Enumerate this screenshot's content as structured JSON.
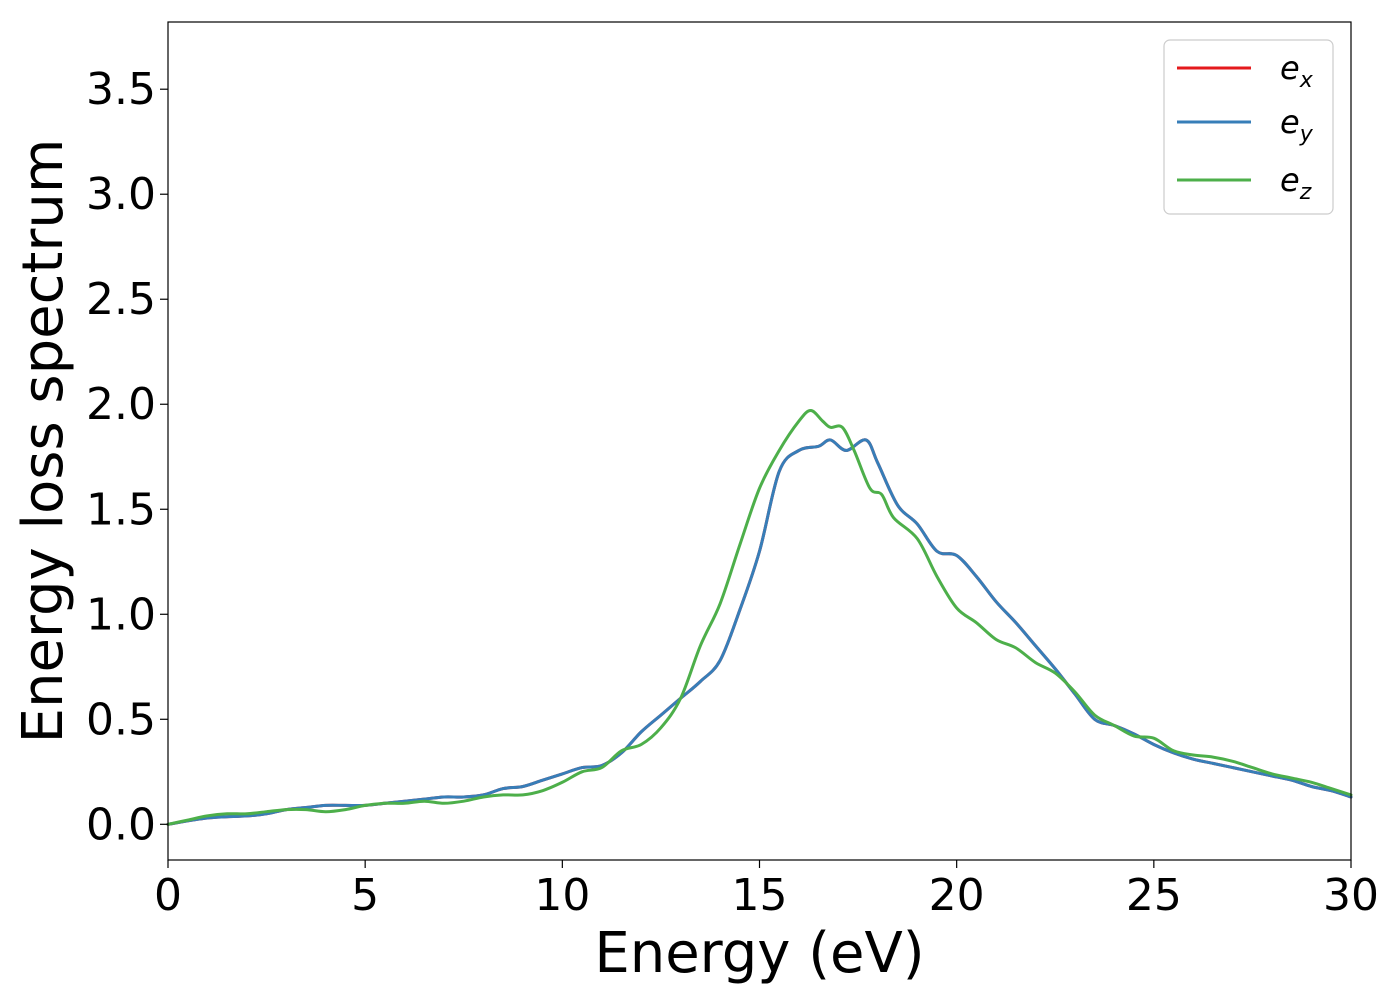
{
  "chart_data": {
    "type": "line",
    "title": "",
    "xlabel": "Energy (eV)",
    "ylabel": "Energy loss spectrum",
    "xlim": [
      0,
      30
    ],
    "ylim": [
      -0.17,
      3.82
    ],
    "xticks": [
      0,
      5,
      10,
      15,
      20,
      25,
      30
    ],
    "xtick_labels": [
      "0",
      "5",
      "10",
      "15",
      "20",
      "25",
      "30"
    ],
    "yticks": [
      0.0,
      0.5,
      1.0,
      1.5,
      2.0,
      2.5,
      3.0,
      3.5
    ],
    "ytick_labels": [
      "0.0",
      "0.5",
      "1.0",
      "1.5",
      "2.0",
      "2.5",
      "3.0",
      "3.5"
    ],
    "grid": false,
    "legend_position": "top-right",
    "series": [
      {
        "name": "e_x",
        "label_base": "e",
        "label_sub": "x",
        "color": "#e41a1c",
        "x": [
          0,
          1,
          2,
          2.5,
          3,
          3.5,
          4,
          4.5,
          5,
          5.5,
          6,
          6.5,
          7,
          7.5,
          8,
          8.5,
          9,
          9.5,
          10,
          10.5,
          11,
          11.5,
          12,
          12.5,
          13,
          13.5,
          14,
          14.5,
          15,
          15.5,
          16,
          16.5,
          16.8,
          17.2,
          17.7,
          18,
          18.5,
          19,
          19.5,
          20,
          20.5,
          21,
          21.5,
          22,
          22.5,
          23,
          23.5,
          24,
          24.5,
          25,
          25.5,
          26,
          26.5,
          27,
          27.5,
          28,
          28.5,
          29,
          29.5,
          30
        ],
        "y": [
          0.0,
          0.03,
          0.04,
          0.05,
          0.07,
          0.08,
          0.09,
          0.09,
          0.09,
          0.1,
          0.11,
          0.12,
          0.13,
          0.13,
          0.14,
          0.17,
          0.18,
          0.21,
          0.24,
          0.27,
          0.28,
          0.34,
          0.44,
          0.52,
          0.6,
          0.68,
          0.78,
          1.02,
          1.3,
          1.68,
          1.78,
          1.8,
          1.83,
          1.78,
          1.83,
          1.72,
          1.52,
          1.43,
          1.3,
          1.28,
          1.18,
          1.06,
          0.96,
          0.85,
          0.74,
          0.62,
          0.5,
          0.47,
          0.43,
          0.38,
          0.34,
          0.31,
          0.29,
          0.27,
          0.25,
          0.23,
          0.21,
          0.18,
          0.16,
          0.13
        ]
      },
      {
        "name": "e_y",
        "label_base": "e",
        "label_sub": "y",
        "color": "#377eb8",
        "x": [
          0,
          1,
          2,
          2.5,
          3,
          3.5,
          4,
          4.5,
          5,
          5.5,
          6,
          6.5,
          7,
          7.5,
          8,
          8.5,
          9,
          9.5,
          10,
          10.5,
          11,
          11.5,
          12,
          12.5,
          13,
          13.5,
          14,
          14.5,
          15,
          15.5,
          16,
          16.5,
          16.8,
          17.2,
          17.7,
          18,
          18.5,
          19,
          19.5,
          20,
          20.5,
          21,
          21.5,
          22,
          22.5,
          23,
          23.5,
          24,
          24.5,
          25,
          25.5,
          26,
          26.5,
          27,
          27.5,
          28,
          28.5,
          29,
          29.5,
          30
        ],
        "y": [
          0.0,
          0.03,
          0.04,
          0.05,
          0.07,
          0.08,
          0.09,
          0.09,
          0.09,
          0.1,
          0.11,
          0.12,
          0.13,
          0.13,
          0.14,
          0.17,
          0.18,
          0.21,
          0.24,
          0.27,
          0.28,
          0.34,
          0.44,
          0.52,
          0.6,
          0.68,
          0.78,
          1.02,
          1.3,
          1.68,
          1.78,
          1.8,
          1.83,
          1.78,
          1.83,
          1.72,
          1.52,
          1.43,
          1.3,
          1.28,
          1.18,
          1.06,
          0.96,
          0.85,
          0.74,
          0.62,
          0.5,
          0.47,
          0.43,
          0.38,
          0.34,
          0.31,
          0.29,
          0.27,
          0.25,
          0.23,
          0.21,
          0.18,
          0.16,
          0.13
        ]
      },
      {
        "name": "e_z",
        "label_base": "e",
        "label_sub": "z",
        "color": "#4daf4a",
        "x": [
          0,
          0.5,
          1,
          1.5,
          2,
          2.5,
          3,
          3.5,
          4,
          4.5,
          5,
          5.5,
          6,
          6.5,
          7,
          7.5,
          8,
          8.5,
          9,
          9.5,
          10,
          10.5,
          11,
          11.5,
          12,
          12.5,
          13,
          13.5,
          14,
          14.5,
          15,
          15.5,
          16,
          16.3,
          16.6,
          16.8,
          17.1,
          17.4,
          17.8,
          18.1,
          18.4,
          19,
          19.5,
          20,
          20.5,
          21,
          21.5,
          22,
          22.5,
          23,
          23.5,
          24,
          24.5,
          25,
          25.5,
          26,
          26.5,
          27,
          27.5,
          28,
          28.5,
          29,
          29.5,
          30
        ],
        "y": [
          0.0,
          0.02,
          0.04,
          0.05,
          0.05,
          0.06,
          0.07,
          0.07,
          0.06,
          0.07,
          0.09,
          0.1,
          0.1,
          0.11,
          0.1,
          0.11,
          0.13,
          0.14,
          0.14,
          0.16,
          0.2,
          0.25,
          0.27,
          0.35,
          0.38,
          0.46,
          0.6,
          0.85,
          1.05,
          1.33,
          1.6,
          1.78,
          1.92,
          1.97,
          1.92,
          1.89,
          1.89,
          1.78,
          1.6,
          1.57,
          1.46,
          1.36,
          1.18,
          1.03,
          0.96,
          0.88,
          0.84,
          0.77,
          0.72,
          0.63,
          0.52,
          0.47,
          0.42,
          0.41,
          0.35,
          0.33,
          0.32,
          0.3,
          0.27,
          0.24,
          0.22,
          0.2,
          0.17,
          0.14
        ]
      }
    ]
  }
}
